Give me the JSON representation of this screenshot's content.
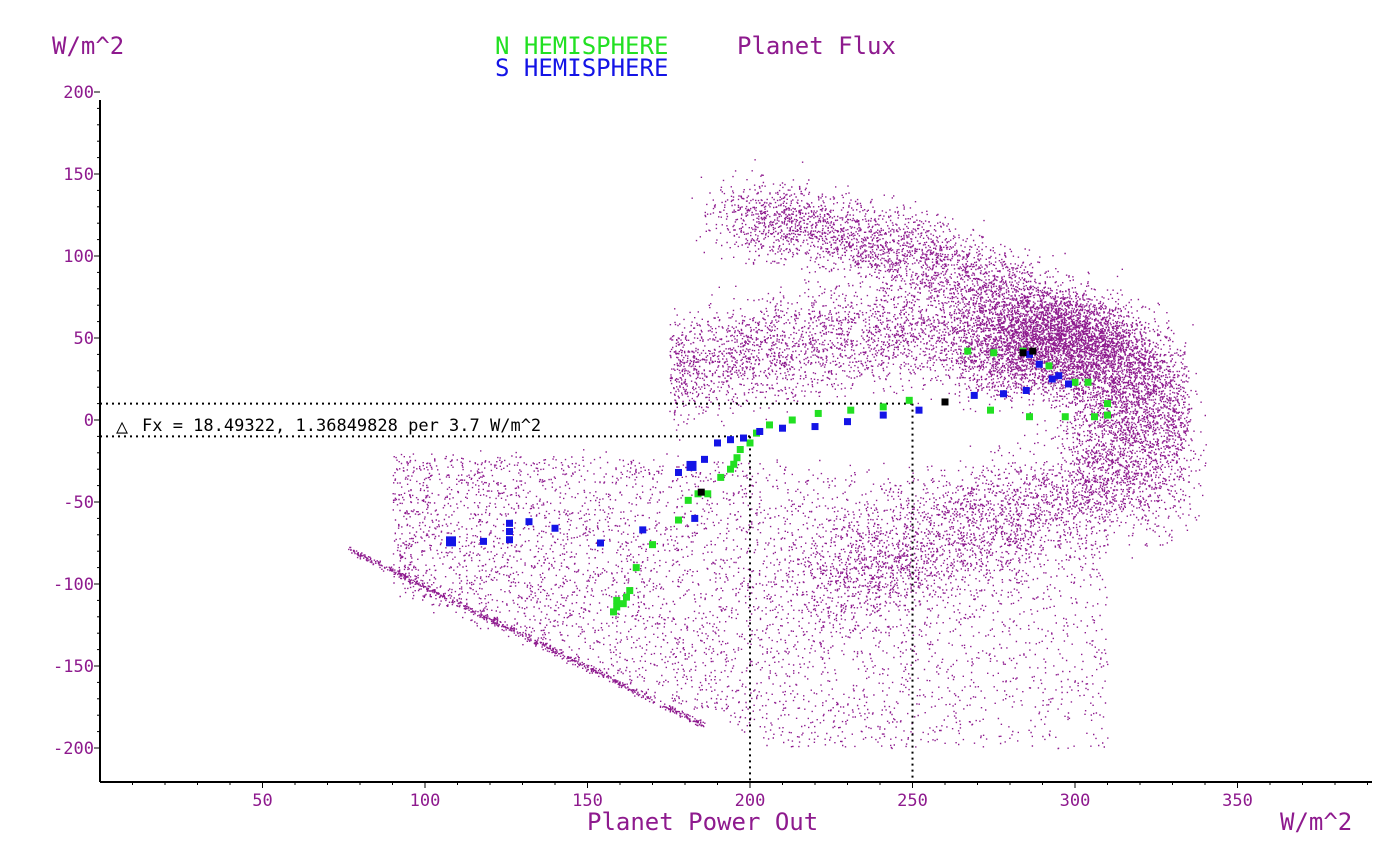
{
  "chart_data": {
    "type": "scatter",
    "title_parts": [
      {
        "text": "N HEMISPHERE",
        "color": "#22e022"
      },
      {
        "text": "S HEMISPHERE",
        "color": "#1414e6"
      },
      {
        "text": "Planet Flux",
        "color": "#8e1a8e"
      }
    ],
    "ylabel": "W/m^2",
    "xlabel": "Planet Power Out",
    "xunit": "W/m^2",
    "xlim": [
      0,
      395
    ],
    "ylim": [
      -222,
      205
    ],
    "xticks": [
      50,
      100,
      150,
      200,
      250,
      300,
      350
    ],
    "yticks": [
      200,
      150,
      100,
      50,
      0,
      -50,
      -100,
      -150,
      -200
    ],
    "annotation": {
      "text": "Fx = 18.49322, 1.36849828 per 3.7 W/m^2",
      "symbol": "△",
      "hlines": [
        10,
        -10
      ],
      "vlines": [
        200,
        250
      ]
    },
    "colors": {
      "cloud": "#8e1a8e",
      "north": "#22e022",
      "south": "#1414e6",
      "black": "#000000"
    },
    "series": [
      {
        "name": "N HEMISPHERE",
        "color": "#22e022",
        "points": [
          [
            158,
            -117
          ],
          [
            159,
            -114
          ],
          [
            159,
            -110
          ],
          [
            161,
            -112
          ],
          [
            162,
            -108
          ],
          [
            163,
            -104
          ],
          [
            165,
            -90
          ],
          [
            170,
            -76
          ],
          [
            178,
            -61
          ],
          [
            181,
            -49
          ],
          [
            184,
            -45
          ],
          [
            187,
            -45
          ],
          [
            191,
            -35
          ],
          [
            194,
            -30
          ],
          [
            195,
            -27
          ],
          [
            196,
            -23
          ],
          [
            197,
            -18
          ],
          [
            200,
            -14
          ],
          [
            202,
            -8
          ],
          [
            206,
            -3
          ],
          [
            213,
            0
          ],
          [
            221,
            4
          ],
          [
            231,
            6
          ],
          [
            241,
            8
          ],
          [
            249,
            12
          ],
          [
            267,
            42
          ],
          [
            275,
            41
          ],
          [
            284,
            42
          ],
          [
            292,
            33
          ],
          [
            300,
            23
          ],
          [
            304,
            23
          ],
          [
            306,
            2
          ],
          [
            310,
            3
          ],
          [
            310,
            10
          ],
          [
            274,
            6
          ],
          [
            286,
            2
          ],
          [
            297,
            2
          ]
        ]
      },
      {
        "name": "S HEMISPHERE",
        "color": "#1414e6",
        "points": [
          [
            108,
            -74
          ],
          [
            118,
            -74
          ],
          [
            126,
            -73
          ],
          [
            126,
            -68
          ],
          [
            126,
            -63
          ],
          [
            132,
            -62
          ],
          [
            140,
            -66
          ],
          [
            154,
            -75
          ],
          [
            167,
            -67
          ],
          [
            178,
            -32
          ],
          [
            182,
            -28
          ],
          [
            183,
            -60
          ],
          [
            186,
            -24
          ],
          [
            190,
            -14
          ],
          [
            194,
            -12
          ],
          [
            198,
            -11
          ],
          [
            203,
            -7
          ],
          [
            210,
            -5
          ],
          [
            220,
            -4
          ],
          [
            230,
            -1
          ],
          [
            241,
            3
          ],
          [
            252,
            6
          ],
          [
            269,
            15
          ],
          [
            278,
            16
          ],
          [
            285,
            18
          ],
          [
            286,
            40
          ],
          [
            289,
            34
          ],
          [
            293,
            25
          ],
          [
            295,
            27
          ],
          [
            298,
            22
          ]
        ]
      },
      {
        "name": "",
        "color": "#000000",
        "points": [
          [
            185,
            -44
          ],
          [
            260,
            11
          ],
          [
            284,
            41
          ],
          [
            287,
            42
          ]
        ]
      }
    ]
  }
}
